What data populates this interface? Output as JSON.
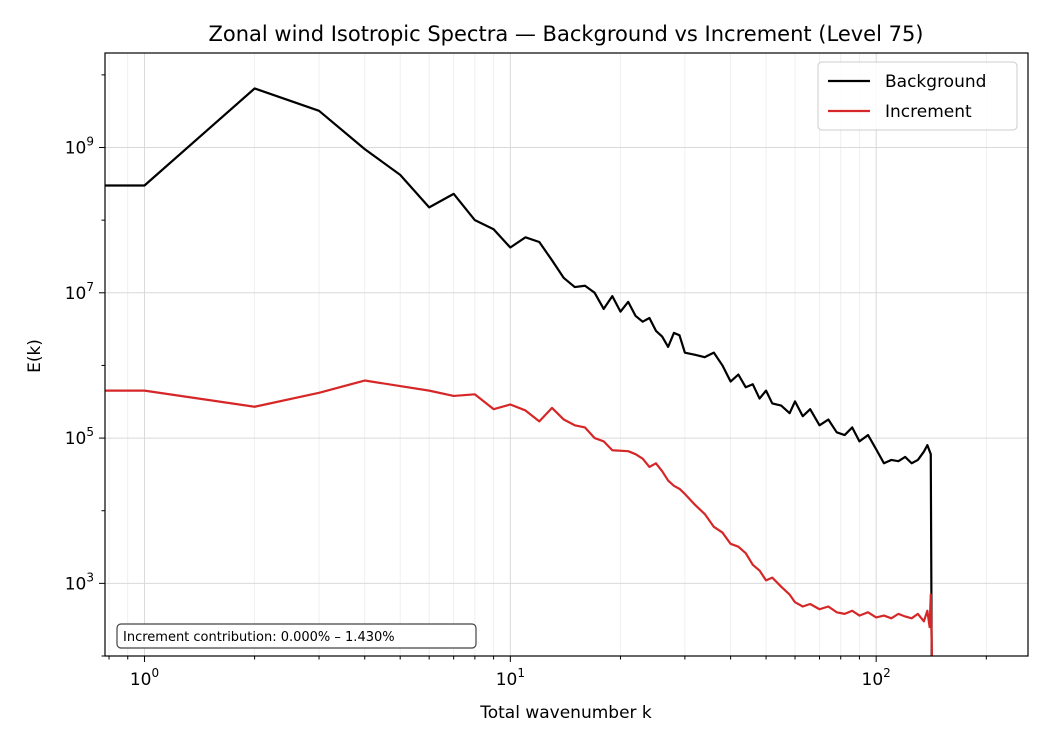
{
  "chart_data": {
    "type": "line",
    "title": "Zonal wind Isotropic Spectra — Background vs Increment (Level 75)",
    "xlabel": "Total wavenumber k",
    "ylabel": "E(k)",
    "xscale": "log",
    "yscale": "log",
    "xlim": [
      0.78,
      260
    ],
    "ylim": [
      100,
      20000000000
    ],
    "grid": true,
    "legend_position": "top-right",
    "x_major_ticks": [
      1,
      10,
      100
    ],
    "y_major_ticks": [
      1000,
      100000,
      10000000,
      1000000000
    ],
    "x_tick_labels": [
      {
        "base": "10",
        "exp": "0"
      },
      {
        "base": "10",
        "exp": "1"
      },
      {
        "base": "10",
        "exp": "2"
      }
    ],
    "y_tick_labels": [
      {
        "base": "10",
        "exp": "3"
      },
      {
        "base": "10",
        "exp": "5"
      },
      {
        "base": "10",
        "exp": "7"
      },
      {
        "base": "10",
        "exp": "9"
      }
    ],
    "annotation": "Increment contribution: 0.000% – 1.430%",
    "series": [
      {
        "name": "Background",
        "color": "#000000",
        "points": [
          [
            0.5,
            300000000
          ],
          [
            1,
            300000000
          ],
          [
            2,
            6500000000
          ],
          [
            3,
            3200000000
          ],
          [
            4,
            950000000
          ],
          [
            5,
            420000000
          ],
          [
            6,
            150000000
          ],
          [
            7,
            230000000
          ],
          [
            8,
            100000000
          ],
          [
            9,
            75000000
          ],
          [
            10,
            42000000
          ],
          [
            11,
            58000000
          ],
          [
            12,
            50000000
          ],
          [
            13,
            28000000
          ],
          [
            14,
            16000000
          ],
          [
            15,
            12000000
          ],
          [
            16,
            12500000
          ],
          [
            17,
            10000000
          ],
          [
            18,
            6000000
          ],
          [
            19,
            9000000
          ],
          [
            20,
            5500000
          ],
          [
            21,
            7500000
          ],
          [
            22,
            4800000
          ],
          [
            23,
            4000000
          ],
          [
            24,
            4500000
          ],
          [
            25,
            3000000
          ],
          [
            26,
            2500000
          ],
          [
            27,
            1800000
          ],
          [
            28,
            2800000
          ],
          [
            29,
            2600000
          ],
          [
            30,
            1500000
          ],
          [
            32,
            1400000
          ],
          [
            34,
            1300000
          ],
          [
            36,
            1500000
          ],
          [
            38,
            1000000
          ],
          [
            40,
            600000
          ],
          [
            42,
            750000
          ],
          [
            44,
            500000
          ],
          [
            46,
            550000
          ],
          [
            48,
            350000
          ],
          [
            50,
            450000
          ],
          [
            52,
            300000
          ],
          [
            55,
            280000
          ],
          [
            58,
            220000
          ],
          [
            60,
            320000
          ],
          [
            63,
            200000
          ],
          [
            66,
            250000
          ],
          [
            70,
            150000
          ],
          [
            74,
            180000
          ],
          [
            78,
            120000
          ],
          [
            82,
            110000
          ],
          [
            86,
            140000
          ],
          [
            90,
            90000
          ],
          [
            95,
            110000
          ],
          [
            100,
            70000
          ],
          [
            105,
            45000
          ],
          [
            110,
            50000
          ],
          [
            115,
            48000
          ],
          [
            120,
            55000
          ],
          [
            125,
            45000
          ],
          [
            130,
            50000
          ],
          [
            135,
            65000
          ],
          [
            138,
            80000
          ],
          [
            141,
            60000
          ],
          [
            142,
            20
          ]
        ]
      },
      {
        "name": "Increment",
        "color": "#d62728",
        "points": [
          [
            0.5,
            450000
          ],
          [
            1,
            450000
          ],
          [
            2,
            270000
          ],
          [
            3,
            420000
          ],
          [
            4,
            620000
          ],
          [
            6,
            450000
          ],
          [
            7,
            380000
          ],
          [
            8,
            400000
          ],
          [
            9,
            250000
          ],
          [
            10,
            290000
          ],
          [
            11,
            240000
          ],
          [
            12,
            170000
          ],
          [
            13,
            260000
          ],
          [
            14,
            180000
          ],
          [
            15,
            150000
          ],
          [
            16,
            140000
          ],
          [
            17,
            100000
          ],
          [
            18,
            90000
          ],
          [
            19,
            68000
          ],
          [
            21,
            66000
          ],
          [
            22,
            60000
          ],
          [
            23,
            52000
          ],
          [
            24,
            40000
          ],
          [
            25,
            45000
          ],
          [
            26,
            35000
          ],
          [
            27,
            26000
          ],
          [
            28,
            22000
          ],
          [
            29,
            20000
          ],
          [
            30,
            17000
          ],
          [
            32,
            12000
          ],
          [
            34,
            9000
          ],
          [
            36,
            6000
          ],
          [
            38,
            5000
          ],
          [
            40,
            3500
          ],
          [
            42,
            3200
          ],
          [
            44,
            2600
          ],
          [
            46,
            1800
          ],
          [
            48,
            1500
          ],
          [
            50,
            1100
          ],
          [
            52,
            1200
          ],
          [
            55,
            900
          ],
          [
            58,
            700
          ],
          [
            60,
            550
          ],
          [
            63,
            480
          ],
          [
            66,
            520
          ],
          [
            70,
            440
          ],
          [
            74,
            480
          ],
          [
            78,
            400
          ],
          [
            82,
            380
          ],
          [
            86,
            420
          ],
          [
            90,
            360
          ],
          [
            95,
            400
          ],
          [
            100,
            340
          ],
          [
            105,
            360
          ],
          [
            110,
            330
          ],
          [
            115,
            380
          ],
          [
            120,
            350
          ],
          [
            125,
            330
          ],
          [
            130,
            380
          ],
          [
            135,
            300
          ],
          [
            138,
            420
          ],
          [
            140,
            250
          ],
          [
            141,
            700
          ],
          [
            142,
            100
          ]
        ]
      }
    ]
  }
}
